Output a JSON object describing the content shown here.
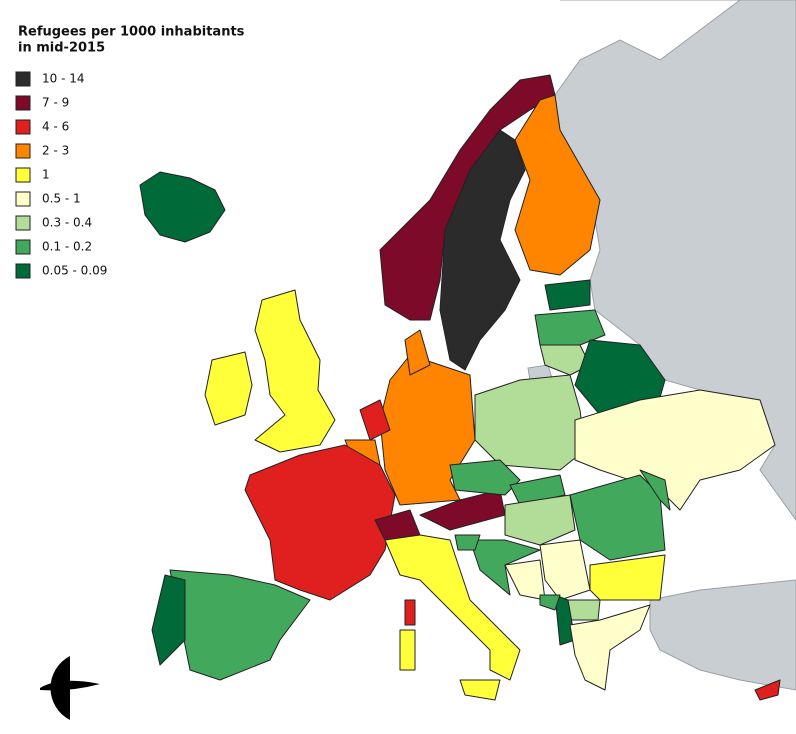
{
  "title_lines": [
    "Refugees per 1000 inhabitants",
    "in mid-2015"
  ],
  "legend": {
    "items": [
      {
        "label": "10 - 14",
        "color": "#2b2b2b"
      },
      {
        "label": "7 - 9",
        "color": "#7d0a28"
      },
      {
        "label": "4 - 6",
        "color": "#e01f1f"
      },
      {
        "label": "2 - 3",
        "color": "#ff8400"
      },
      {
        "label": "1",
        "color": "#ffff3a"
      },
      {
        "label": "0.5 - 1",
        "color": "#ffffcc"
      },
      {
        "label": "0.3 - 0.4",
        "color": "#b2dd98"
      },
      {
        "label": "0.1 - 0.2",
        "color": "#42a85c"
      },
      {
        "label": "0.05 - 0.09",
        "color": "#006a38"
      }
    ]
  }
}
